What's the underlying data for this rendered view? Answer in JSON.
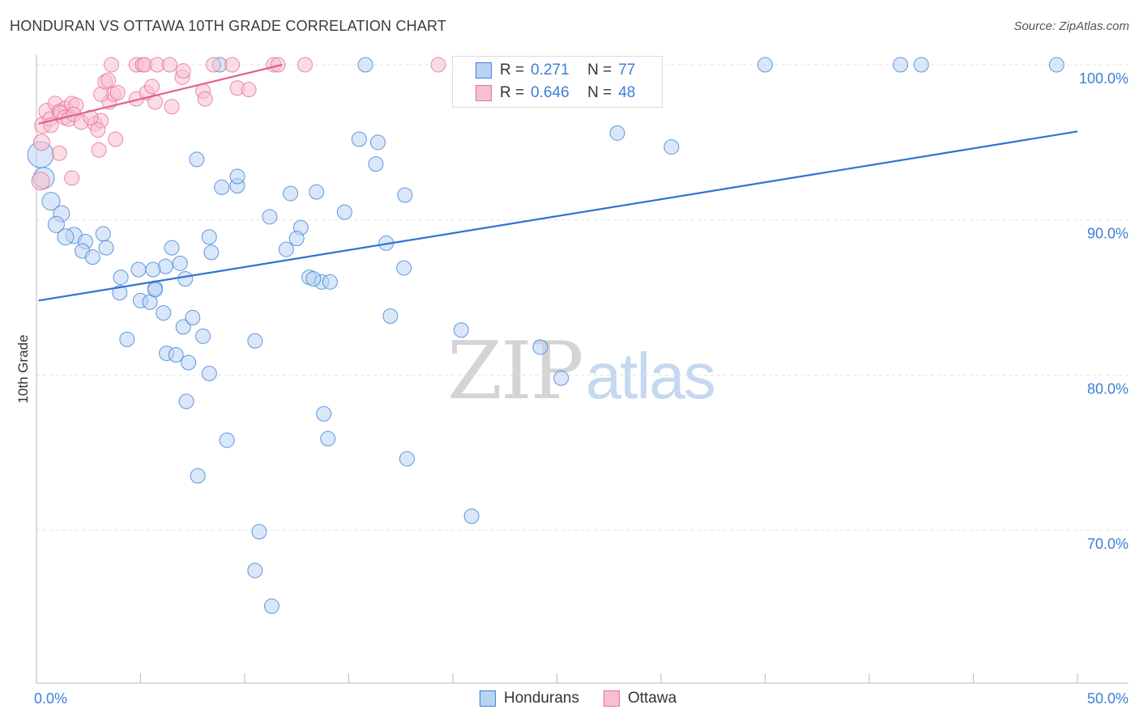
{
  "title": "HONDURAN VS OTTAWA 10TH GRADE CORRELATION CHART",
  "source": "Source: ZipAtlas.com",
  "watermark": {
    "zip": "ZIP",
    "atlas": "atlas"
  },
  "colors": {
    "blue": "#3d7fd6",
    "blue_fill": "#b9d3f3",
    "blue_line": "#2f74d0",
    "pink": "#e56f96",
    "pink_fill": "#f7bfd0",
    "pink_line": "#e0628c",
    "grid": "#e3e3e3",
    "axis": "#bbbbbb"
  },
  "legend": {
    "rows": [
      {
        "r_label": "R =",
        "r_value": "0.271",
        "n_label": "N =",
        "n_value": "77"
      },
      {
        "r_label": "R =",
        "r_value": "0.646",
        "n_label": "N =",
        "n_value": "48"
      }
    ]
  },
  "bottom_legend": [
    "Hondurans",
    "Ottawa"
  ],
  "chart_data": {
    "type": "scatter",
    "title": "HONDURAN VS OTTAWA 10TH GRADE CORRELATION CHART",
    "ylabel": "10th Grade",
    "xlabel": "",
    "xlim": [
      0,
      50
    ],
    "ylim": [
      60.5,
      101.5
    ],
    "x_tick_labels": {
      "left": "0.0%",
      "right": "50.0%"
    },
    "y_ticks": [
      {
        "value": 100,
        "label": "100.0%"
      },
      {
        "value": 90,
        "label": "90.0%"
      },
      {
        "value": 80,
        "label": "80.0%"
      },
      {
        "value": 70,
        "label": "70.0%"
      }
    ],
    "series": [
      {
        "name": "Hondurans",
        "r": 0.271,
        "n": 77,
        "trend": {
          "x1": 0.1,
          "y1": 84.8,
          "x2": 50,
          "y2": 95.7
        },
        "points": [
          [
            0.2,
            94.2
          ],
          [
            0.35,
            92.7
          ],
          [
            0.7,
            91.2
          ],
          [
            1.2,
            90.4
          ],
          [
            0.95,
            89.7
          ],
          [
            1.8,
            89.0
          ],
          [
            1.4,
            88.9
          ],
          [
            3.2,
            89.1
          ],
          [
            2.35,
            88.6
          ],
          [
            2.2,
            88.0
          ],
          [
            2.7,
            87.6
          ],
          [
            3.35,
            88.2
          ],
          [
            4.05,
            86.3
          ],
          [
            4.9,
            86.8
          ],
          [
            4.0,
            85.3
          ],
          [
            5.7,
            85.6
          ],
          [
            5.0,
            84.8
          ],
          [
            5.45,
            84.7
          ],
          [
            6.1,
            84.0
          ],
          [
            7.05,
            83.1
          ],
          [
            8.0,
            82.5
          ],
          [
            4.35,
            82.3
          ],
          [
            6.25,
            81.4
          ],
          [
            6.7,
            81.3
          ],
          [
            7.3,
            80.8
          ],
          [
            8.3,
            80.1
          ],
          [
            5.7,
            85.5
          ],
          [
            7.15,
            86.2
          ],
          [
            6.2,
            87.0
          ],
          [
            5.6,
            86.8
          ],
          [
            6.5,
            88.2
          ],
          [
            6.9,
            87.2
          ],
          [
            8.3,
            88.9
          ],
          [
            8.4,
            87.9
          ],
          [
            7.5,
            83.7
          ],
          [
            7.7,
            93.9
          ],
          [
            8.9,
            92.1
          ],
          [
            9.65,
            92.2
          ],
          [
            9.65,
            92.8
          ],
          [
            11.2,
            90.2
          ],
          [
            12.2,
            91.7
          ],
          [
            12.7,
            89.5
          ],
          [
            13.45,
            91.8
          ],
          [
            14.8,
            90.5
          ],
          [
            15.5,
            95.2
          ],
          [
            16.4,
            95.0
          ],
          [
            16.3,
            93.6
          ],
          [
            16.8,
            88.5
          ],
          [
            17.7,
            91.6
          ],
          [
            12.0,
            88.1
          ],
          [
            12.5,
            88.8
          ],
          [
            13.1,
            86.3
          ],
          [
            13.7,
            86.0
          ],
          [
            14.1,
            86.0
          ],
          [
            17.65,
            86.9
          ],
          [
            17.0,
            83.8
          ],
          [
            13.3,
            86.2
          ],
          [
            10.5,
            82.2
          ],
          [
            7.2,
            78.3
          ],
          [
            13.8,
            77.5
          ],
          [
            9.15,
            75.8
          ],
          [
            14.0,
            75.9
          ],
          [
            7.75,
            73.5
          ],
          [
            17.8,
            74.6
          ],
          [
            20.4,
            82.9
          ],
          [
            24.2,
            81.8
          ],
          [
            25.2,
            79.8
          ],
          [
            20.9,
            70.9
          ],
          [
            10.7,
            69.9
          ],
          [
            10.5,
            67.4
          ],
          [
            11.3,
            65.1
          ],
          [
            8.8,
            100.0
          ],
          [
            15.8,
            100.0
          ],
          [
            35.0,
            100.0
          ],
          [
            41.5,
            100.0
          ],
          [
            42.5,
            100.0
          ],
          [
            49.0,
            100.0
          ],
          [
            27.9,
            95.6
          ],
          [
            30.5,
            94.7
          ]
        ],
        "point_sizes": [
          32,
          26,
          22,
          20,
          20,
          20,
          20,
          18,
          18,
          18,
          18,
          18,
          18,
          18,
          18,
          18,
          18,
          18,
          18,
          18,
          18,
          18,
          18,
          18,
          18,
          18,
          18,
          18,
          18,
          18,
          18,
          18,
          18,
          18,
          18,
          18,
          18,
          18,
          18,
          18,
          18,
          18,
          18,
          18,
          18,
          18,
          18,
          18,
          18,
          18,
          18,
          18,
          18,
          18,
          18,
          18,
          18,
          18,
          18,
          18,
          18,
          18,
          18,
          18,
          18,
          18,
          18,
          18,
          18,
          18,
          18,
          18,
          18,
          18,
          18,
          18,
          18,
          18,
          18
        ]
      },
      {
        "name": "Ottawa",
        "r": 0.646,
        "n": 48,
        "trend": {
          "x1": 0.1,
          "y1": 96.2,
          "x2": 11.8,
          "y2": 100.0
        },
        "points": [
          [
            0.2,
            92.5
          ],
          [
            0.25,
            95.0
          ],
          [
            0.3,
            96.1
          ],
          [
            0.5,
            97.0
          ],
          [
            0.65,
            96.5
          ],
          [
            0.9,
            97.5
          ],
          [
            1.1,
            97.0
          ],
          [
            1.4,
            97.2
          ],
          [
            1.7,
            97.5
          ],
          [
            1.9,
            97.4
          ],
          [
            1.15,
            96.9
          ],
          [
            1.35,
            96.6
          ],
          [
            1.55,
            96.5
          ],
          [
            1.8,
            96.8
          ],
          [
            0.7,
            96.1
          ],
          [
            1.1,
            94.3
          ],
          [
            1.7,
            92.7
          ],
          [
            2.15,
            96.3
          ],
          [
            2.8,
            96.2
          ],
          [
            3.1,
            96.4
          ],
          [
            2.95,
            95.8
          ],
          [
            3.5,
            97.6
          ],
          [
            3.7,
            98.1
          ],
          [
            3.1,
            98.1
          ],
          [
            3.9,
            98.2
          ],
          [
            3.3,
            98.9
          ],
          [
            3.45,
            99.0
          ],
          [
            4.8,
            97.8
          ],
          [
            5.3,
            98.2
          ],
          [
            5.55,
            98.6
          ],
          [
            6.5,
            97.3
          ],
          [
            7.0,
            99.2
          ],
          [
            7.05,
            99.6
          ],
          [
            8.0,
            98.3
          ],
          [
            8.1,
            97.8
          ],
          [
            3.8,
            95.2
          ],
          [
            3.0,
            94.5
          ],
          [
            2.6,
            96.6
          ],
          [
            3.6,
            100.0
          ],
          [
            4.8,
            100.0
          ],
          [
            5.1,
            100.0
          ],
          [
            5.2,
            100.0
          ],
          [
            5.8,
            100.0
          ],
          [
            6.4,
            100.0
          ],
          [
            8.5,
            100.0
          ],
          [
            9.4,
            100.0
          ],
          [
            11.4,
            100.0
          ],
          [
            11.6,
            100.0
          ],
          [
            12.9,
            100.0
          ],
          [
            19.3,
            100.0
          ],
          [
            9.65,
            98.5
          ],
          [
            10.2,
            98.4
          ],
          [
            5.7,
            97.6
          ]
        ],
        "point_sizes": [
          22,
          20,
          20,
          20,
          18,
          18,
          18,
          18,
          18,
          18,
          18,
          18,
          18,
          18,
          18,
          18,
          18,
          18,
          18,
          18,
          18,
          18,
          18,
          18,
          18,
          18,
          18,
          18,
          18,
          18,
          18,
          18,
          18,
          18,
          18,
          18,
          18,
          18,
          18,
          18,
          18,
          18,
          18,
          18,
          18,
          18,
          18,
          18,
          18,
          18,
          18,
          18,
          18
        ]
      }
    ]
  }
}
